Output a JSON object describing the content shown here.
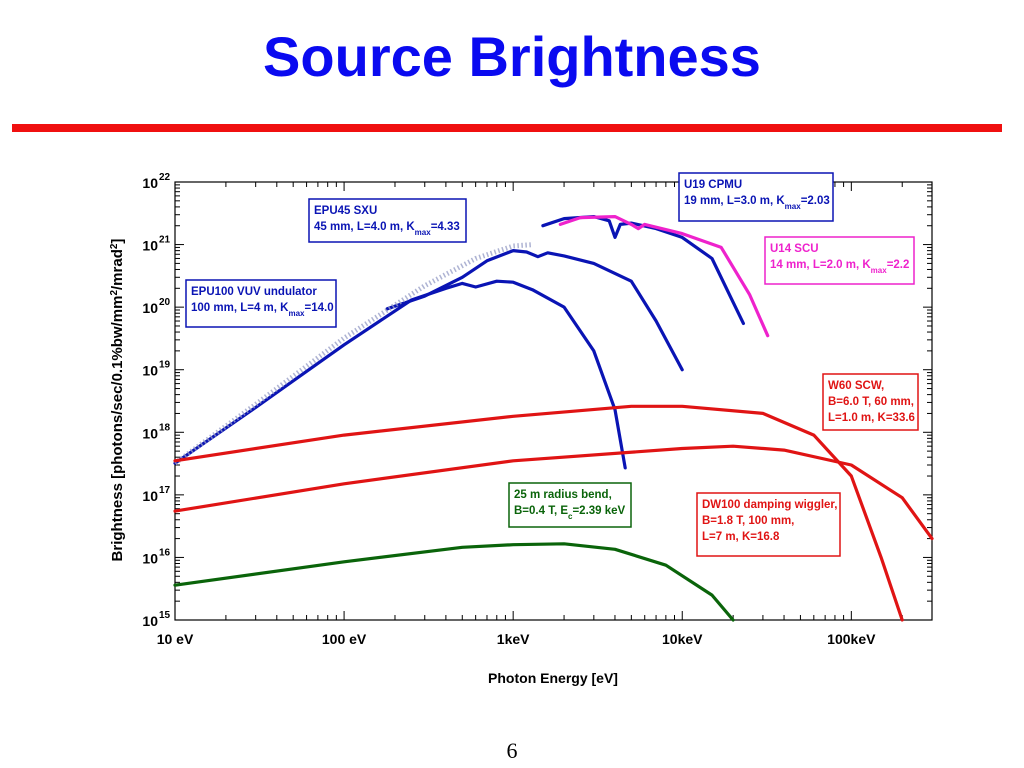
{
  "slide": {
    "title": "Source Brightness",
    "page_number": "6"
  },
  "colors": {
    "title": "#0a0af0",
    "rule": "#f01010",
    "undulator": "#0a14b4",
    "scu": "#ee22cc",
    "wiggler": "#e01414",
    "bend": "#0a640a"
  },
  "chart_data": {
    "type": "line",
    "xlabel": "Photon Energy [eV]",
    "ylabel": "Brightness [photons/sec/0.1%bw/mm²/mrad²]",
    "x_scale": "log",
    "y_scale": "log",
    "xlim": [
      10,
      300000
    ],
    "ylim": [
      1000000000000000.0,
      1e+22
    ],
    "x_ticks": [
      {
        "value": 10,
        "label": "10 eV"
      },
      {
        "value": 100,
        "label": "100 eV"
      },
      {
        "value": 1000,
        "label": "1keV"
      },
      {
        "value": 10000,
        "label": "10keV"
      },
      {
        "value": 100000,
        "label": "100keV"
      }
    ],
    "y_ticks": [
      {
        "value": 1000000000000000.0,
        "base": "10",
        "exp": "15"
      },
      {
        "value": 1e+16,
        "base": "10",
        "exp": "16"
      },
      {
        "value": 1e+17,
        "base": "10",
        "exp": "17"
      },
      {
        "value": 1e+18,
        "base": "10",
        "exp": "18"
      },
      {
        "value": 1e+19,
        "base": "10",
        "exp": "19"
      },
      {
        "value": 1e+20,
        "base": "10",
        "exp": "20"
      },
      {
        "value": 1e+21,
        "base": "10",
        "exp": "21"
      },
      {
        "value": 1e+22,
        "base": "10",
        "exp": "22"
      }
    ],
    "series": [
      {
        "key": "epu100",
        "color": "#0a14b4",
        "style": "solid",
        "points": [
          [
            10,
            3.2e+17
          ],
          [
            30,
            2.5e+18
          ],
          [
            100,
            2.5e+19
          ],
          [
            250,
            1.3e+20
          ],
          [
            400,
            2e+20
          ],
          [
            500,
            2.4e+20
          ],
          [
            600,
            2.1e+20
          ],
          [
            800,
            2.6e+20
          ],
          [
            1000,
            2.5e+20
          ],
          [
            1300,
            1.9e+20
          ],
          [
            2000,
            1e+20
          ],
          [
            3000,
            2e+19
          ],
          [
            4000,
            2.3e+18
          ],
          [
            4600,
            2.7e+17
          ]
        ]
      },
      {
        "key": "epu45",
        "color": "#0a14b4",
        "style": "solid",
        "points": [
          [
            180,
            9.4e+19
          ],
          [
            300,
            1.5e+20
          ],
          [
            500,
            3e+20
          ],
          [
            700,
            5.5e+20
          ],
          [
            1000,
            8e+20
          ],
          [
            1200,
            7.6e+20
          ],
          [
            1400,
            6.4e+20
          ],
          [
            1600,
            7.4e+20
          ],
          [
            2000,
            6.6e+20
          ],
          [
            3000,
            5e+20
          ],
          [
            5000,
            2.6e+20
          ],
          [
            7000,
            6e+19
          ],
          [
            10000,
            1e+19
          ]
        ]
      },
      {
        "key": "u19",
        "color": "#0a14b4",
        "style": "solid",
        "points": [
          [
            1500,
            2e+21
          ],
          [
            2000,
            2.6e+21
          ],
          [
            3000,
            2.8e+21
          ],
          [
            3700,
            2.4e+21
          ],
          [
            4000,
            1.3e+21
          ],
          [
            4300,
            2.1e+21
          ],
          [
            5000,
            2.2e+21
          ],
          [
            7000,
            1.8e+21
          ],
          [
            10000,
            1.3e+21
          ],
          [
            15000,
            6e+20
          ],
          [
            20000,
            1.2e+20
          ],
          [
            23000,
            5.5e+19
          ]
        ]
      },
      {
        "key": "u14",
        "color": "#ee22cc",
        "style": "solid",
        "points": [
          [
            1900,
            2.1e+21
          ],
          [
            2500,
            2.7e+21
          ],
          [
            4000,
            2.8e+21
          ],
          [
            5000,
            2.1e+21
          ],
          [
            5500,
            1.8e+21
          ],
          [
            6000,
            2.1e+21
          ],
          [
            10000,
            1.5e+21
          ],
          [
            17000,
            9e+20
          ],
          [
            25000,
            1.6e+20
          ],
          [
            32000,
            3.5e+19
          ]
        ]
      },
      {
        "key": "epu_envelope",
        "color": "#9aa0c8",
        "style": "dotted",
        "points": [
          [
            10,
            3.2e+17
          ],
          [
            30,
            2.8e+18
          ],
          [
            100,
            3.2e+19
          ],
          [
            300,
            2.2e+20
          ],
          [
            600,
            6e+20
          ],
          [
            1000,
            9.5e+20
          ],
          [
            1300,
            1e+21
          ]
        ]
      },
      {
        "key": "w60",
        "color": "#e01414",
        "style": "solid",
        "points": [
          [
            10,
            3.5e+17
          ],
          [
            100,
            9e+17
          ],
          [
            1000,
            1.8e+18
          ],
          [
            5000,
            2.6e+18
          ],
          [
            10000,
            2.6e+18
          ],
          [
            30000,
            2e+18
          ],
          [
            60000,
            9e+17
          ],
          [
            100000,
            2e+17
          ],
          [
            150000,
            1e+16
          ],
          [
            200000,
            1000000000000000.0
          ]
        ]
      },
      {
        "key": "dw100",
        "color": "#e01414",
        "style": "solid",
        "points": [
          [
            10,
            5.5e+16
          ],
          [
            100,
            1.5e+17
          ],
          [
            1000,
            3.5e+17
          ],
          [
            10000,
            5.5e+17
          ],
          [
            20000,
            6e+17
          ],
          [
            40000,
            5.2e+17
          ],
          [
            100000,
            3e+17
          ],
          [
            200000,
            9e+16
          ],
          [
            300000,
            2e+16
          ]
        ]
      },
      {
        "key": "bend",
        "color": "#0a640a",
        "style": "solid",
        "points": [
          [
            10,
            3600000000000000.0
          ],
          [
            100,
            8500000000000000.0
          ],
          [
            500,
            1.45e+16
          ],
          [
            1000,
            1.6e+16
          ],
          [
            2000,
            1.65e+16
          ],
          [
            4000,
            1.35e+16
          ],
          [
            8000,
            7500000000000000.0
          ],
          [
            15000,
            2500000000000000.0
          ],
          [
            20000,
            1000000000000000.0
          ]
        ]
      }
    ],
    "annotations": [
      {
        "key": "epu100",
        "border": "#0a14b4",
        "lines": [
          "EPU100 VUV undulator",
          "100 mm, L=4 m, K_max=14.0"
        ]
      },
      {
        "key": "epu45",
        "border": "#0a14b4",
        "lines": [
          "EPU45 SXU",
          "45 mm, L=4.0 m, K_max=4.33"
        ]
      },
      {
        "key": "u19",
        "border": "#0a14b4",
        "lines": [
          "U19 CPMU",
          "19 mm, L=3.0 m, K_max=2.03"
        ]
      },
      {
        "key": "u14",
        "border": "#ee22cc",
        "lines": [
          "U14 SCU",
          "14 mm, L=2.0 m, K_max=2.2"
        ]
      },
      {
        "key": "w60",
        "border": "#e01414",
        "lines": [
          "W60 SCW,",
          "B=6.0 T, 60 mm,",
          "L=1.0 m, K=33.6"
        ]
      },
      {
        "key": "dw100",
        "border": "#e01414",
        "lines": [
          "DW100 damping wiggler,",
          "B=1.8 T, 100 mm,",
          "L=7 m, K=16.8"
        ]
      },
      {
        "key": "bend",
        "border": "#0a640a",
        "lines": [
          "25 m radius bend,",
          "B=0.4 T, E_c=2.39 keV"
        ]
      }
    ]
  }
}
